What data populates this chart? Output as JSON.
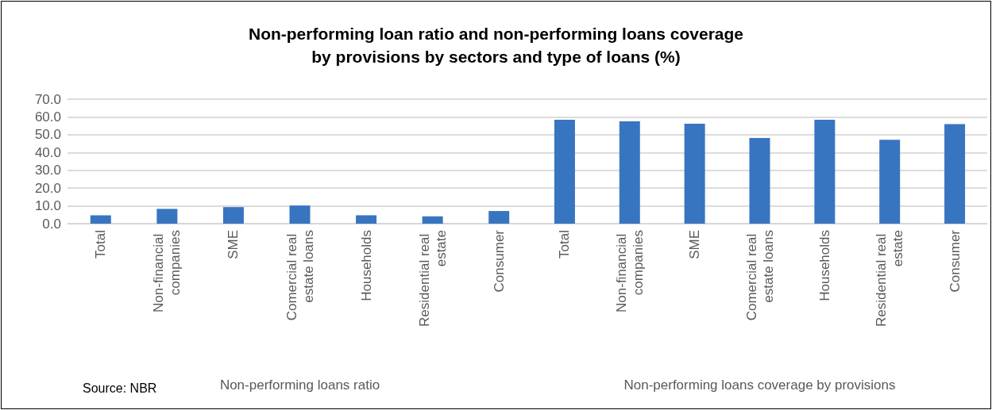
{
  "chart_data": [
    {
      "type": "bar",
      "title": "Non-performing loan ratio and non-performing loans coverage\nby provisions by sectors and type of loans (%)",
      "xlabel": "Non-performing loans ratio",
      "annotations": [
        "Source: NBR"
      ],
      "categories": [
        "Total",
        "Non-financial companies",
        "SME",
        "Comercial real estate loans",
        "Households",
        "Residential real estate",
        "Consumer"
      ],
      "values": [
        4.7,
        8.3,
        9.3,
        10.2,
        4.7,
        4.1,
        7.1
      ],
      "color": "#3875c0",
      "ylim": [
        0,
        70
      ],
      "yticks": [
        {
          "value": 0,
          "label": "0.0"
        },
        {
          "value": 10,
          "label": "10.0"
        },
        {
          "value": 20,
          "label": "20.0"
        },
        {
          "value": 30,
          "label": "30.0"
        },
        {
          "value": 40,
          "label": "40.0"
        },
        {
          "value": 50,
          "label": "50.0"
        },
        {
          "value": 60,
          "label": "60.0"
        },
        {
          "value": 70,
          "label": "70.0"
        }
      ],
      "grid": "y"
    },
    {
      "type": "bar",
      "xlabel": "Non-performing loans coverage by provisions",
      "categories": [
        "Total",
        "Non-financial companies",
        "SME",
        "Comercial real estate loans",
        "Households",
        "Residential real estate",
        "Consumer"
      ],
      "values": [
        58.4,
        57.5,
        56.2,
        48.1,
        58.4,
        47.1,
        55.9
      ],
      "color": "#3875c0",
      "ylim": [
        0,
        70
      ],
      "yticks": [
        0,
        10,
        20,
        30,
        40,
        50,
        60,
        70
      ],
      "grid": "y",
      "tick_labels": "x"
    }
  ]
}
